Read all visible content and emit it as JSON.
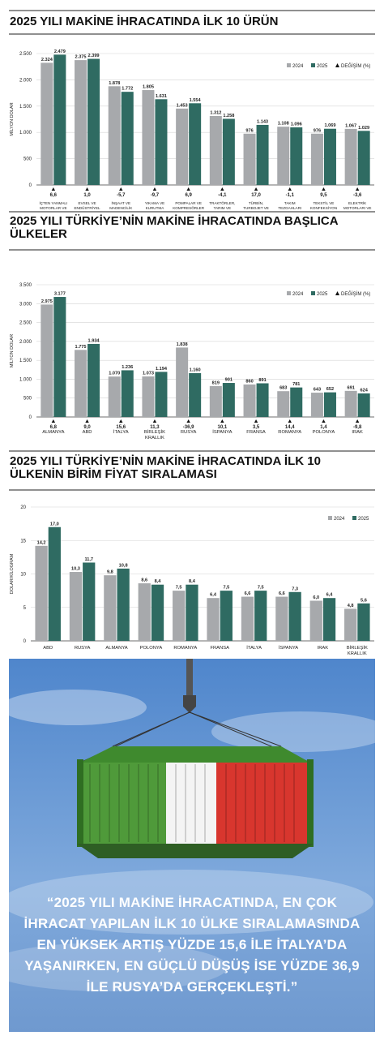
{
  "chart_data": [
    {
      "type": "bar",
      "title": "2025 YILI MAKİNE İHRACATINDA İLK 10 ÜRÜN",
      "y_label": "MİLYON DOLAR",
      "categories": [
        "İÇTEN YANMALI MOTORLAR VE AKSAMLARI",
        "EVSEL VE ENDÜSTRİYEL SOĞUTMA MAKİNELERİ",
        "İNŞAAT VE MADENCİLİK MAKİNELERİ",
        "YIKAMA VE KURUTMA MAKİNELERİ",
        "POMPALAR VE KOMPRESÖRLER",
        "TRAKTÖRLER, TARIM VE ORMANCILIK MAKİNELERİ",
        "TÜRBİN, TURBOJET VE HİDROLİK SİSTEMLER",
        "TAKIM TEZGAHLARI",
        "TEKSTİL VE KONFEKSİYON MAKİNELERİ",
        "ELEKTRİK MOTORLARI VE JENERATÖRLER"
      ],
      "series": [
        {
          "name": "2024",
          "color": "#a7a9ac",
          "values": [
            2324,
            2375,
            1878,
            1805,
            1453,
            1312,
            976,
            1108,
            976,
            1067
          ],
          "value_labels": [
            "2.324",
            "2.375",
            "1.878",
            "1.805",
            "1.453",
            "1.312",
            "976",
            "1.108",
            "976",
            "1.067"
          ]
        },
        {
          "name": "2025",
          "color": "#2f6b62",
          "values": [
            2479,
            2399,
            1772,
            1631,
            1554,
            1258,
            1143,
            1096,
            1069,
            1029
          ],
          "value_labels": [
            "2.479",
            "2.399",
            "1.772",
            "1.631",
            "1.554",
            "1.258",
            "1.143",
            "1.096",
            "1.069",
            "1.029"
          ]
        }
      ],
      "change": {
        "name": "DEĞİŞİM (%)",
        "values": [
          6.6,
          1.0,
          -5.7,
          -9.7,
          6.9,
          -4.1,
          17.0,
          -1.1,
          9.5,
          -3.6
        ],
        "value_labels": [
          "6,6",
          "1,0",
          "-5,7",
          "-9,7",
          "6,9",
          "-4,1",
          "17,0",
          "-1,1",
          "9,5",
          "-3,6"
        ]
      },
      "ylim": [
        0,
        2500
      ],
      "yticks": [
        0,
        500,
        {
          "value": 1000,
          "label": "1.000"
        },
        {
          "value": 1500,
          "label": "1.500"
        },
        {
          "value": 2000,
          "label": "2.000"
        },
        {
          "value": 2500,
          "label": "2.500"
        }
      ],
      "grid": true
    },
    {
      "type": "bar",
      "title": "2025 YILI TÜRKİYE’NİN MAKİNE İHRACATINDA BAŞLICA ÜLKELER",
      "y_label": "MİLYON DOLAR",
      "categories": [
        "ALMANYA",
        "ABD",
        "İTALYA",
        "BİRLEŞİK KRALLIK",
        "RUSYA",
        "İSPANYA",
        "FRANSA",
        "ROMANYA",
        "POLONYA",
        "IRAK"
      ],
      "series": [
        {
          "name": "2024",
          "color": "#a7a9ac",
          "values": [
            2975,
            1775,
            1070,
            1073,
            1838,
            819,
            860,
            683,
            643,
            691
          ],
          "value_labels": [
            "2.975",
            "1.775",
            "1.070",
            "1.073",
            "1.838",
            "819",
            "860",
            "683",
            "643",
            "691"
          ]
        },
        {
          "name": "2025",
          "color": "#2f6b62",
          "values": [
            3177,
            1934,
            1236,
            1194,
            1160,
            901,
            891,
            781,
            652,
            624
          ],
          "value_labels": [
            "3.177",
            "1.934",
            "1.236",
            "1.194",
            "1.160",
            "901",
            "891",
            "781",
            "652",
            "624"
          ]
        }
      ],
      "change": {
        "name": "DEĞİŞİM (%)",
        "values": [
          6.8,
          9.0,
          15.6,
          11.3,
          -36.9,
          10.1,
          3.5,
          14.4,
          1.4,
          -9.8
        ],
        "value_labels": [
          "6,8",
          "9,0",
          "15,6",
          "11,3",
          "-36,9",
          "10,1",
          "3,5",
          "14,4",
          "1,4",
          "-9,8"
        ]
      },
      "ylim": [
        0,
        3500
      ],
      "yticks": [
        0,
        500,
        {
          "value": 1000,
          "label": "1.000"
        },
        {
          "value": 1500,
          "label": "1.500"
        },
        {
          "value": 2000,
          "label": "2.000"
        },
        {
          "value": 2500,
          "label": "2.500"
        },
        {
          "value": 3000,
          "label": "3.000"
        },
        {
          "value": 3500,
          "label": "3.500"
        }
      ],
      "grid": true
    },
    {
      "type": "bar",
      "title": "2025 YILI TÜRKİYE’NİN MAKİNE İHRACATINDA İLK 10 ÜLKENİN BİRİM FİYAT SIRALAMASI",
      "y_label": "DOLAR/KİLOGRAM",
      "categories": [
        "ABD",
        "RUSYA",
        "ALMANYA",
        "POLONYA",
        "ROMANYA",
        "FRANSA",
        "İTALYA",
        "İSPANYA",
        "IRAK",
        "BİRLEŞİK KRALLIK"
      ],
      "series": [
        {
          "name": "2024",
          "color": "#a7a9ac",
          "values": [
            14.2,
            10.3,
            9.8,
            8.6,
            7.5,
            6.4,
            6.6,
            6.6,
            6.0,
            4.8
          ],
          "value_labels": [
            "14,2",
            "10,3",
            "9,8",
            "8,6",
            "7,5",
            "6,4",
            "6,6",
            "6,6",
            "6,0",
            "4,8"
          ]
        },
        {
          "name": "2025",
          "color": "#2f6b62",
          "values": [
            17.0,
            11.7,
            10.8,
            8.4,
            8.4,
            7.5,
            7.5,
            7.3,
            6.4,
            5.6
          ],
          "value_labels": [
            "17,0",
            "11,7",
            "10,8",
            "8,4",
            "8,4",
            "7,5",
            "7,5",
            "7,3",
            "6,4",
            "5,6"
          ]
        }
      ],
      "ylim": [
        0,
        20
      ],
      "yticks": [
        0,
        5,
        10,
        15,
        20
      ],
      "grid": true
    }
  ],
  "quote": "“2025 YILI MAKİNE İHRACATINDA, EN ÇOK İHRACAT YAPILAN İLK 10 ÜLKE SIRALAMASINDA EN YÜKSEK ARTIŞ YÜZDE 15,6 İLE İTALYA’DA YAŞANIRKEN, EN GÜÇLÜ DÜŞÜŞ İSE YÜZDE 36,9 İLE RUSYA’DA GERÇEKLEŞTİ.”"
}
